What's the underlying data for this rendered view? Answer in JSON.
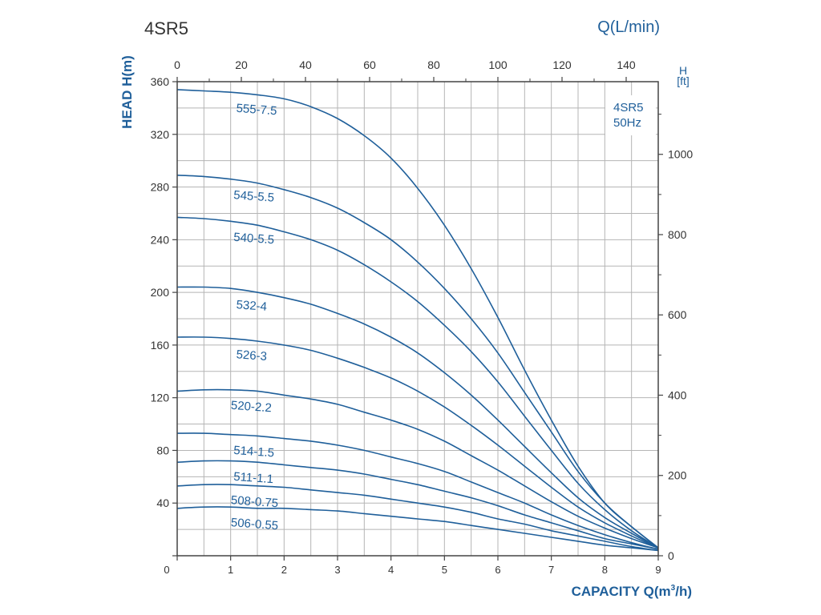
{
  "chart_data": {
    "type": "line",
    "title": "4SR5",
    "legend_box": [
      "4SR5",
      "50Hz"
    ],
    "xlabel": "CAPACITY Q(m",
    "xlabel_sup": "3",
    "xlabel_tail": "/h)",
    "ylabel": "HEAD H(m)",
    "top_axis_label": "Q(L/min)",
    "right_axis_label": [
      "H",
      "[ft]"
    ],
    "x_ticks": [
      0,
      1,
      2,
      3,
      4,
      5,
      6,
      7,
      8,
      9
    ],
    "y_ticks": [
      0,
      40,
      80,
      120,
      160,
      200,
      240,
      280,
      320,
      360
    ],
    "y_tick_labels": [
      "",
      "40",
      "80",
      "120",
      "160",
      "200",
      "240",
      "280",
      "320",
      "360"
    ],
    "x_origin_label": "0",
    "top_ticks": [
      0,
      20,
      40,
      60,
      80,
      100,
      120,
      140
    ],
    "right_ticks": [
      0,
      200,
      400,
      600,
      800,
      1000
    ],
    "xlim": [
      0,
      9
    ],
    "ylim": [
      0,
      360
    ],
    "top_lim": [
      0,
      150
    ],
    "right_lim": [
      0,
      1181
    ],
    "grid": true,
    "colors": {
      "curve": "#1f5f9a",
      "axis_text": "#333333",
      "grid": "#b5b5b5",
      "frame": "#444444"
    },
    "series": [
      {
        "name": "555-7.5",
        "points": [
          [
            0,
            354
          ],
          [
            0.5,
            353
          ],
          [
            1,
            352
          ],
          [
            1.5,
            350
          ],
          [
            2,
            347
          ],
          [
            2.5,
            341
          ],
          [
            3,
            332
          ],
          [
            3.5,
            319
          ],
          [
            4,
            302
          ],
          [
            4.5,
            279
          ],
          [
            5,
            251
          ],
          [
            5.5,
            218
          ],
          [
            6,
            181
          ],
          [
            6.5,
            141
          ],
          [
            7,
            103
          ],
          [
            7.5,
            68
          ],
          [
            8,
            40
          ],
          [
            8.5,
            22
          ],
          [
            9,
            6
          ]
        ]
      },
      {
        "name": "545-5.5",
        "points": [
          [
            0,
            289
          ],
          [
            0.5,
            288
          ],
          [
            1,
            286
          ],
          [
            1.5,
            283
          ],
          [
            2,
            278
          ],
          [
            2.5,
            272
          ],
          [
            3,
            264
          ],
          [
            3.5,
            253
          ],
          [
            4,
            240
          ],
          [
            4.5,
            223
          ],
          [
            5,
            203
          ],
          [
            5.5,
            180
          ],
          [
            6,
            154
          ],
          [
            6.5,
            124
          ],
          [
            7,
            94
          ],
          [
            7.5,
            64
          ],
          [
            8,
            40
          ],
          [
            8.5,
            22
          ],
          [
            9,
            6
          ]
        ]
      },
      {
        "name": "540-5.5",
        "points": [
          [
            0,
            257
          ],
          [
            0.5,
            256
          ],
          [
            1,
            254
          ],
          [
            1.5,
            251
          ],
          [
            2,
            246
          ],
          [
            2.5,
            240
          ],
          [
            3,
            232
          ],
          [
            3.5,
            221
          ],
          [
            4,
            208
          ],
          [
            4.5,
            193
          ],
          [
            5,
            175
          ],
          [
            5.5,
            155
          ],
          [
            6,
            132
          ],
          [
            6.5,
            106
          ],
          [
            7,
            80
          ],
          [
            7.5,
            55
          ],
          [
            8,
            35
          ],
          [
            8.5,
            19
          ],
          [
            9,
            6
          ]
        ]
      },
      {
        "name": "532-4",
        "points": [
          [
            0,
            204
          ],
          [
            0.5,
            204
          ],
          [
            1,
            203
          ],
          [
            1.5,
            200
          ],
          [
            2,
            196
          ],
          [
            2.5,
            191
          ],
          [
            3,
            184
          ],
          [
            3.5,
            176
          ],
          [
            4,
            166
          ],
          [
            4.5,
            154
          ],
          [
            5,
            139
          ],
          [
            5.5,
            122
          ],
          [
            6,
            103
          ],
          [
            6.5,
            83
          ],
          [
            7,
            63
          ],
          [
            7.5,
            44
          ],
          [
            8,
            29
          ],
          [
            8.5,
            17
          ],
          [
            9,
            6
          ]
        ]
      },
      {
        "name": "526-3",
        "points": [
          [
            0,
            166
          ],
          [
            0.5,
            166
          ],
          [
            1,
            165
          ],
          [
            1.5,
            163
          ],
          [
            2,
            160
          ],
          [
            2.5,
            156
          ],
          [
            3,
            150
          ],
          [
            3.5,
            143
          ],
          [
            4,
            135
          ],
          [
            4.5,
            125
          ],
          [
            5,
            113
          ],
          [
            5.5,
            99
          ],
          [
            6,
            84
          ],
          [
            6.5,
            68
          ],
          [
            7,
            52
          ],
          [
            7.5,
            37
          ],
          [
            8,
            25
          ],
          [
            8.5,
            15
          ],
          [
            9,
            6
          ]
        ]
      },
      {
        "name": "520-2.2",
        "points": [
          [
            0,
            125
          ],
          [
            0.5,
            126
          ],
          [
            1,
            126
          ],
          [
            1.5,
            125
          ],
          [
            2,
            122
          ],
          [
            2.5,
            119
          ],
          [
            3,
            115
          ],
          [
            3.5,
            109
          ],
          [
            4,
            103
          ],
          [
            4.5,
            96
          ],
          [
            5,
            87
          ],
          [
            5.5,
            76
          ],
          [
            6,
            65
          ],
          [
            6.5,
            53
          ],
          [
            7,
            41
          ],
          [
            7.5,
            30
          ],
          [
            8,
            21
          ],
          [
            8.5,
            13
          ],
          [
            9,
            6
          ]
        ]
      },
      {
        "name": "514-1.5",
        "points": [
          [
            0,
            93
          ],
          [
            0.5,
            93
          ],
          [
            1,
            92
          ],
          [
            1.5,
            91
          ],
          [
            2,
            89
          ],
          [
            2.5,
            87
          ],
          [
            3,
            84
          ],
          [
            3.5,
            80
          ],
          [
            4,
            75
          ],
          [
            4.5,
            70
          ],
          [
            5,
            64
          ],
          [
            5.5,
            56
          ],
          [
            6,
            48
          ],
          [
            6.5,
            40
          ],
          [
            7,
            31
          ],
          [
            7.5,
            23
          ],
          [
            8,
            16
          ],
          [
            8.5,
            10
          ],
          [
            9,
            5
          ]
        ]
      },
      {
        "name": "511-1.1",
        "points": [
          [
            0,
            71
          ],
          [
            0.5,
            72
          ],
          [
            1,
            72
          ],
          [
            1.5,
            71
          ],
          [
            2,
            69
          ],
          [
            2.5,
            67
          ],
          [
            3,
            65
          ],
          [
            3.5,
            62
          ],
          [
            4,
            58
          ],
          [
            4.5,
            54
          ],
          [
            5,
            49
          ],
          [
            5.5,
            44
          ],
          [
            6,
            38
          ],
          [
            6.5,
            31
          ],
          [
            7,
            25
          ],
          [
            7.5,
            19
          ],
          [
            8,
            13
          ],
          [
            8.5,
            9
          ],
          [
            9,
            5
          ]
        ]
      },
      {
        "name": "508-0.75",
        "points": [
          [
            0,
            53
          ],
          [
            0.5,
            54
          ],
          [
            1,
            54
          ],
          [
            1.5,
            53
          ],
          [
            2,
            52
          ],
          [
            2.5,
            50
          ],
          [
            3,
            48
          ],
          [
            3.5,
            46
          ],
          [
            4,
            43
          ],
          [
            4.5,
            40
          ],
          [
            5,
            37
          ],
          [
            5.5,
            33
          ],
          [
            6,
            28
          ],
          [
            6.5,
            24
          ],
          [
            7,
            19
          ],
          [
            7.5,
            15
          ],
          [
            8,
            11
          ],
          [
            8.5,
            7
          ],
          [
            9,
            4
          ]
        ]
      },
      {
        "name": "506-0.55",
        "points": [
          [
            0,
            36
          ],
          [
            0.5,
            37
          ],
          [
            1,
            37
          ],
          [
            1.5,
            36
          ],
          [
            2,
            36
          ],
          [
            2.5,
            35
          ],
          [
            3,
            34
          ],
          [
            3.5,
            32
          ],
          [
            4,
            30
          ],
          [
            4.5,
            28
          ],
          [
            5,
            26
          ],
          [
            5.5,
            23
          ],
          [
            6,
            20
          ],
          [
            6.5,
            17
          ],
          [
            7,
            14
          ],
          [
            7.5,
            11
          ],
          [
            8,
            8
          ],
          [
            8.5,
            6
          ],
          [
            9,
            4
          ]
        ]
      }
    ]
  }
}
